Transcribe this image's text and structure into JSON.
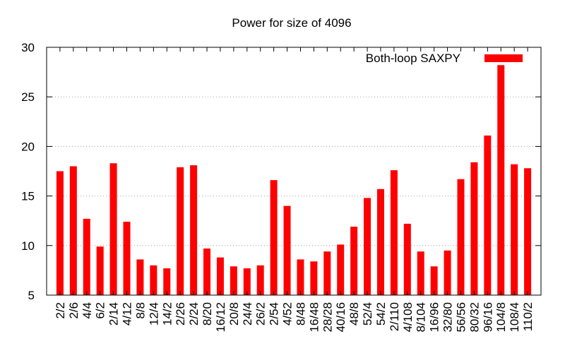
{
  "chart_data": {
    "type": "bar",
    "title": "Power for size of 4096",
    "xlabel": "",
    "ylabel": "",
    "ylim": [
      5,
      30
    ],
    "yticks": [
      "5",
      "10",
      "15",
      "20",
      "25",
      "30"
    ],
    "grid": true,
    "legend_position": "top-right",
    "categories": [
      "2/2",
      "2/6",
      "4/4",
      "6/2",
      "2/14",
      "4/12",
      "8/8",
      "12/4",
      "14/2",
      "2/26",
      "2/24",
      "8/20",
      "16/12",
      "20/8",
      "24/4",
      "26/2",
      "2/54",
      "4/52",
      "8/48",
      "16/48",
      "28/28",
      "40/16",
      "48/8",
      "52/4",
      "54/2",
      "2/110",
      "4/108",
      "8/104",
      "16/96",
      "32/80",
      "56/56",
      "80/32",
      "96/16",
      "104/8",
      "108/4",
      "110/2"
    ],
    "series": [
      {
        "name": "Both-loop SAXPY",
        "color": "#ff0000",
        "values": [
          17.5,
          18.0,
          12.7,
          9.9,
          18.3,
          12.4,
          8.6,
          8.0,
          7.7,
          17.9,
          18.1,
          9.7,
          8.8,
          7.9,
          7.7,
          8.0,
          16.6,
          14.0,
          8.6,
          8.4,
          9.4,
          10.1,
          11.9,
          14.8,
          15.7,
          17.6,
          12.2,
          9.4,
          7.9,
          9.5,
          16.7,
          18.4,
          21.1,
          28.2,
          18.2,
          17.8
        ]
      }
    ]
  }
}
